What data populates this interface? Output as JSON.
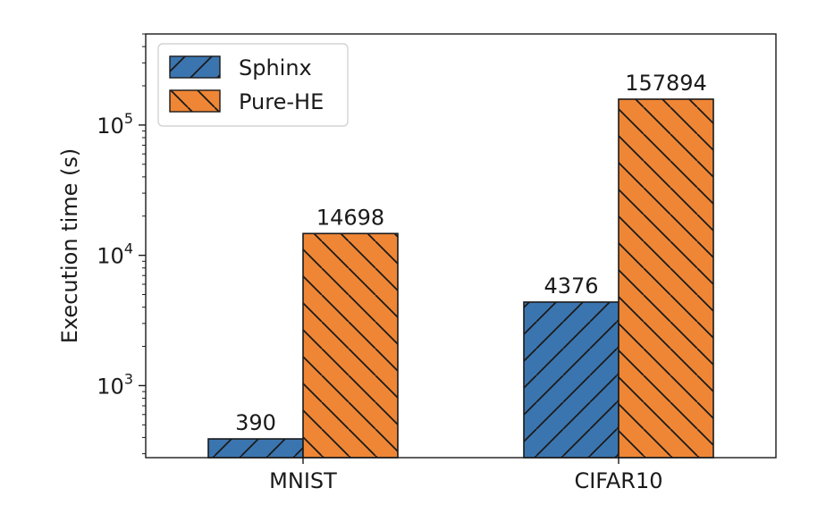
{
  "chart_data": {
    "type": "bar",
    "categories": [
      "MNIST",
      "CIFAR10"
    ],
    "series": [
      {
        "name": "Sphinx",
        "values": [
          390,
          4376
        ],
        "color": "#3b75af",
        "hatch": "/"
      },
      {
        "name": "Pure-HE",
        "values": [
          14698,
          157894
        ],
        "color": "#ef8636",
        "hatch": "\\"
      }
    ],
    "ylabel": "Execution time (s)",
    "yscale": "log",
    "ylim": [
      280,
      500000
    ],
    "yticks": [
      {
        "value": 1000,
        "base": "10",
        "exp": "3"
      },
      {
        "value": 10000,
        "base": "10",
        "exp": "4"
      },
      {
        "value": 100000,
        "base": "10",
        "exp": "5"
      }
    ],
    "legend": "top-left",
    "grid": false
  }
}
